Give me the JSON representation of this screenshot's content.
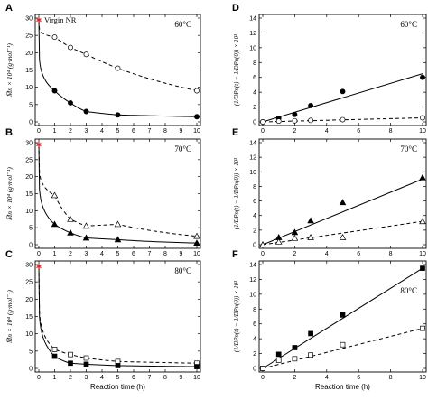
{
  "chart_data": [
    {
      "panel": "A",
      "type": "scatter",
      "temperature": "60°C",
      "ylabel": "M̅n × 10⁴ (g·mol⁻¹)",
      "xlabel": "",
      "xlim": [
        0,
        10
      ],
      "ylim": [
        0,
        30
      ],
      "xticks": [
        "0",
        "1",
        "2",
        "3",
        "4",
        "5",
        "6",
        "7",
        "8",
        "9",
        "10"
      ],
      "yticks": [
        "0",
        "5",
        "10",
        "15",
        "20",
        "25",
        "30"
      ],
      "virgin": {
        "label": "Virgin NR",
        "x": 0,
        "y": 29.5
      },
      "series": [
        {
          "marker": "open-circle",
          "line": "dashed",
          "x": [
            0,
            1,
            2,
            3,
            5,
            10
          ],
          "y": [
            29.5,
            24.5,
            21.5,
            19.5,
            15.5,
            9.0
          ]
        },
        {
          "marker": "filled-circle",
          "line": "solid",
          "x": [
            0,
            1,
            2,
            3,
            5,
            10
          ],
          "y": [
            29.5,
            9.0,
            5.5,
            3.0,
            2.0,
            1.5
          ]
        }
      ]
    },
    {
      "panel": "B",
      "type": "scatter",
      "temperature": "70°C",
      "ylabel": "M̅n × 10⁴ (g·mol⁻¹)",
      "xlabel": "",
      "xlim": [
        0,
        10
      ],
      "ylim": [
        0,
        30
      ],
      "xticks": [
        "0",
        "1",
        "2",
        "3",
        "4",
        "5",
        "6",
        "7",
        "8",
        "9",
        "10"
      ],
      "yticks": [
        "0",
        "5",
        "10",
        "15",
        "20",
        "25",
        "30"
      ],
      "virgin": {
        "label": "",
        "x": 0,
        "y": 29.5
      },
      "series": [
        {
          "marker": "open-triangle",
          "line": "dashed",
          "x": [
            0,
            1,
            2,
            3,
            5,
            10
          ],
          "y": [
            29.5,
            14.5,
            7.5,
            5.5,
            6.0,
            2.5
          ]
        },
        {
          "marker": "filled-triangle",
          "line": "solid",
          "x": [
            0,
            1,
            2,
            3,
            5,
            10
          ],
          "y": [
            29.5,
            6.0,
            3.5,
            2.0,
            1.5,
            0.5
          ]
        }
      ]
    },
    {
      "panel": "C",
      "type": "scatter",
      "temperature": "80°C",
      "ylabel": "M̅n × 10⁴ (g·mol⁻¹)",
      "xlabel": "Reaction time (h)",
      "xlim": [
        0,
        10
      ],
      "ylim": [
        0,
        30
      ],
      "xticks": [
        "0",
        "1",
        "2",
        "3",
        "4",
        "5",
        "6",
        "7",
        "8",
        "9",
        "10"
      ],
      "yticks": [
        "0",
        "5",
        "10",
        "15",
        "20",
        "25",
        "30"
      ],
      "virgin": {
        "label": "",
        "x": 0,
        "y": 29.5
      },
      "series": [
        {
          "marker": "open-square",
          "line": "dashed",
          "x": [
            0,
            1,
            2,
            3,
            5,
            10
          ],
          "y": [
            29.5,
            5.5,
            4.0,
            3.0,
            2.0,
            1.5
          ]
        },
        {
          "marker": "filled-square",
          "line": "solid",
          "x": [
            0,
            1,
            2,
            3,
            5,
            10
          ],
          "y": [
            29.5,
            3.5,
            1.5,
            1.2,
            0.8,
            0.5
          ]
        }
      ]
    },
    {
      "panel": "D",
      "type": "scatter",
      "temperature": "60°C",
      "ylabel": "(1/DPn(t) − 1/DPn(0)) × 10³",
      "xlabel": "",
      "xlim": [
        0,
        10
      ],
      "ylim": [
        0,
        14
      ],
      "xticks": [
        "0",
        "2",
        "4",
        "6",
        "8",
        "10"
      ],
      "yticks": [
        "0",
        "2",
        "4",
        "6",
        "8",
        "10",
        "12",
        "14"
      ],
      "series": [
        {
          "marker": "filled-circle",
          "line": "solid",
          "x": [
            0,
            1,
            2,
            3,
            5,
            10
          ],
          "y": [
            0,
            0.5,
            1.0,
            2.2,
            4.1,
            6.0
          ],
          "fit": [
            [
              0,
              0.0
            ],
            [
              10,
              6.5
            ]
          ]
        },
        {
          "marker": "open-circle",
          "line": "dashed",
          "x": [
            0,
            1,
            2,
            3,
            5,
            10
          ],
          "y": [
            0,
            0.1,
            0.15,
            0.2,
            0.3,
            0.55
          ],
          "fit": [
            [
              0,
              0.0
            ],
            [
              10,
              0.55
            ]
          ]
        }
      ]
    },
    {
      "panel": "E",
      "type": "scatter",
      "temperature": "70°C",
      "ylabel": "(1/DPn(t) − 1/DPn(0)) × 10³",
      "xlabel": "",
      "xlim": [
        0,
        10
      ],
      "ylim": [
        0,
        14
      ],
      "xticks": [
        "0",
        "2",
        "4",
        "6",
        "8",
        "10"
      ],
      "yticks": [
        "0",
        "2",
        "4",
        "6",
        "8",
        "10",
        "12",
        "14"
      ],
      "series": [
        {
          "marker": "filled-triangle",
          "line": "solid",
          "x": [
            0,
            1,
            2,
            3,
            5,
            10
          ],
          "y": [
            0,
            1.0,
            1.7,
            3.3,
            5.8,
            9.2
          ],
          "fit": [
            [
              0,
              0.0
            ],
            [
              10,
              9.0
            ]
          ]
        },
        {
          "marker": "open-triangle",
          "line": "dashed",
          "x": [
            0,
            1,
            2,
            3,
            5,
            10
          ],
          "y": [
            0,
            0.4,
            0.9,
            1.0,
            1.0,
            3.2
          ],
          "fit": [
            [
              0,
              0.0
            ],
            [
              10,
              3.2
            ]
          ]
        }
      ]
    },
    {
      "panel": "F",
      "type": "scatter",
      "temperature": "80°C",
      "ylabel": "(1/DPn(t) − 1/DPn(0)) × 10³",
      "xlabel": "Reaction time (h)",
      "xlim": [
        0,
        10
      ],
      "ylim": [
        0,
        14
      ],
      "xticks": [
        "0",
        "2",
        "4",
        "6",
        "8",
        "10"
      ],
      "yticks": [
        "0",
        "2",
        "4",
        "6",
        "8",
        "10",
        "12",
        "14"
      ],
      "series": [
        {
          "marker": "filled-square",
          "line": "solid",
          "x": [
            0,
            1,
            2,
            3,
            5,
            10
          ],
          "y": [
            0,
            1.9,
            2.8,
            4.7,
            7.2,
            13.5
          ],
          "fit": [
            [
              0,
              0.0
            ],
            [
              10,
              13.5
            ]
          ]
        },
        {
          "marker": "open-square",
          "line": "dashed",
          "x": [
            0,
            1,
            2,
            3,
            5,
            10
          ],
          "y": [
            0,
            1.1,
            1.3,
            1.8,
            3.2,
            5.4
          ],
          "fit": [
            [
              0,
              0.0
            ],
            [
              10,
              5.4
            ]
          ]
        }
      ]
    }
  ]
}
